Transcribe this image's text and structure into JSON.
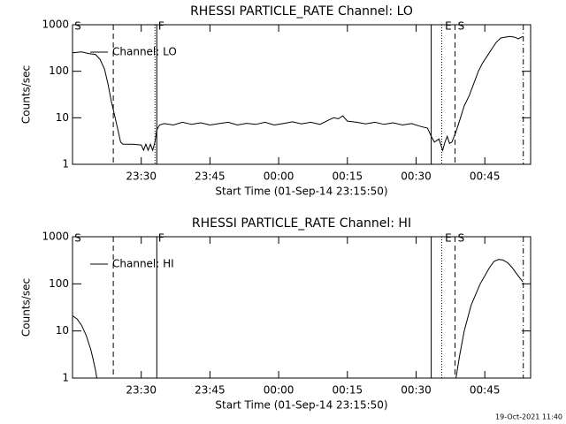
{
  "chart_data": [
    {
      "type": "line",
      "title": "RHESSI PARTICLE_RATE Channel: LO",
      "xlabel": "Start Time (01-Sep-14 23:15:50)",
      "ylabel": "Counts/sec",
      "log_y": true,
      "legend": "upper-left",
      "ylim": [
        1,
        1000
      ],
      "yticks": [
        1,
        10,
        100,
        1000
      ],
      "xlim": [
        0,
        100
      ],
      "xticks": [
        {
          "value": 15,
          "label": "23:30"
        },
        {
          "value": 30,
          "label": "23:45"
        },
        {
          "value": 45,
          "label": "00:00"
        },
        {
          "value": 60,
          "label": "00:15"
        },
        {
          "value": 75,
          "label": "00:30"
        },
        {
          "value": 90,
          "label": "00:45"
        }
      ],
      "vlines": [
        {
          "x": 8.9,
          "style": "dashed"
        },
        {
          "x": 18,
          "style": "dotted"
        },
        {
          "x": 18.4,
          "style": "solid"
        },
        {
          "x": 78.3,
          "style": "solid"
        },
        {
          "x": 80.6,
          "style": "dotted"
        },
        {
          "x": 83.5,
          "style": "dashed"
        },
        {
          "x": 98.4,
          "style": "dashdot"
        }
      ],
      "annotations": [
        {
          "x": 0.4,
          "text": "S"
        },
        {
          "x": 18.7,
          "text": "F"
        },
        {
          "x": 81.3,
          "text": "E"
        },
        {
          "x": 84.1,
          "text": "S"
        }
      ],
      "series": [
        {
          "name": "Channel: LO",
          "color": "#000000",
          "x": [
            0,
            2,
            3.5,
            5,
            6,
            7,
            7.8,
            8.5,
            9.3,
            10,
            10.5,
            11,
            13,
            15,
            15.5,
            16,
            16.5,
            17,
            17.5,
            18,
            18.4,
            19,
            20,
            22,
            24,
            26,
            28,
            30,
            32,
            34,
            36,
            38,
            40,
            42,
            44,
            46,
            48,
            50,
            52,
            54,
            56,
            57,
            58,
            59,
            60,
            62,
            64,
            66,
            68,
            70,
            72,
            74,
            76,
            77.5,
            78.3,
            79,
            80,
            80.8,
            81.3,
            81.8,
            82.3,
            82.8,
            83.7,
            84.7,
            85.5,
            86.6,
            87.6,
            88.6,
            89.5,
            90.5,
            91.5,
            92.5,
            93.5,
            95.4,
            96.5,
            97.3,
            98.3
          ],
          "values": [
            250,
            260,
            240,
            230,
            180,
            110,
            50,
            22,
            10,
            5,
            3,
            2.7,
            2.7,
            2.6,
            2,
            2.7,
            2,
            2.7,
            2,
            3,
            5.5,
            7,
            7.5,
            7,
            8,
            7.2,
            7.8,
            7,
            7.5,
            8,
            7,
            7.6,
            7.2,
            8,
            7,
            7.5,
            8.2,
            7.4,
            8,
            7.2,
            9,
            10,
            9.5,
            11,
            8.5,
            8,
            7.4,
            8,
            7.2,
            7.8,
            7,
            7.5,
            6.5,
            6,
            4,
            3,
            3.5,
            2,
            3,
            4,
            2.8,
            3,
            5,
            10,
            18,
            30,
            55,
            100,
            150,
            210,
            300,
            420,
            520,
            560,
            540,
            500,
            560
          ]
        }
      ]
    },
    {
      "type": "line",
      "title": "RHESSI PARTICLE_RATE Channel: HI",
      "xlabel": "Start Time (01-Sep-14 23:15:50)",
      "ylabel": "Counts/sec",
      "log_y": true,
      "legend": "upper-left",
      "ylim": [
        1,
        1000
      ],
      "yticks": [
        1,
        10,
        100,
        1000
      ],
      "xlim": [
        0,
        100
      ],
      "xticks": [
        {
          "value": 15,
          "label": "23:30"
        },
        {
          "value": 30,
          "label": "23:45"
        },
        {
          "value": 45,
          "label": "00:00"
        },
        {
          "value": 60,
          "label": "00:15"
        },
        {
          "value": 75,
          "label": "00:30"
        },
        {
          "value": 90,
          "label": "00:45"
        }
      ],
      "vlines": [
        {
          "x": 8.9,
          "style": "dashed"
        },
        {
          "x": 18.4,
          "style": "solid"
        },
        {
          "x": 78.3,
          "style": "solid"
        },
        {
          "x": 80.6,
          "style": "dotted"
        },
        {
          "x": 83.5,
          "style": "dashed"
        },
        {
          "x": 98.4,
          "style": "dashdot"
        }
      ],
      "annotations": [
        {
          "x": 0.4,
          "text": "S"
        },
        {
          "x": 18.7,
          "text": "F"
        },
        {
          "x": 81.3,
          "text": "E"
        },
        {
          "x": 84.1,
          "text": "S"
        }
      ],
      "series": [
        {
          "name": "Channel: HI",
          "color": "#000000",
          "x": [
            0,
            1,
            2,
            3,
            4,
            4.5,
            5,
            5.3,
            40,
            83.7,
            84.5,
            85.5,
            87,
            89,
            91,
            92,
            93,
            94,
            95,
            96,
            97,
            98.3
          ],
          "values": [
            21,
            18,
            13,
            8,
            4,
            2.5,
            1.5,
            1,
            null,
            1,
            3,
            10,
            35,
            100,
            220,
            300,
            330,
            320,
            280,
            220,
            160,
            110
          ]
        }
      ]
    }
  ],
  "footer": "19-Oct-2021 11:40"
}
